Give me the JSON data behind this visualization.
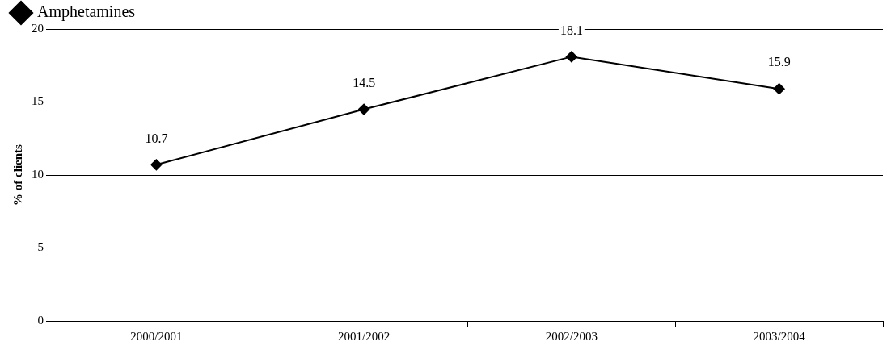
{
  "chart_data": {
    "type": "line",
    "ylabel": "% of clients",
    "categories": [
      "2000/2001",
      "2001/2002",
      "2002/2003",
      "2003/2004"
    ],
    "series": [
      {
        "name": "Amphetamines",
        "color": "#000000",
        "values": [
          10.7,
          14.5,
          18.1,
          15.9
        ]
      }
    ],
    "ylim": [
      0,
      20
    ],
    "yticks": [
      0,
      5,
      10,
      15,
      20
    ],
    "grid": "y",
    "legend": "top left",
    "marker": "diamond",
    "line_style": "solid",
    "data_labels": true
  }
}
